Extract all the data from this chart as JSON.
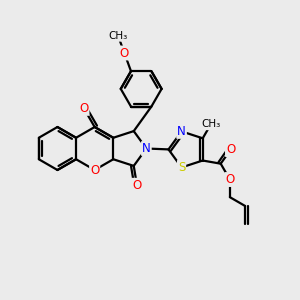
{
  "bg_color": "#ebebeb",
  "atom_colors": {
    "O": "#ff0000",
    "N": "#0000ff",
    "S": "#cccc00",
    "C": "#000000"
  },
  "bond_width": 1.6,
  "font_size_atom": 8.5
}
